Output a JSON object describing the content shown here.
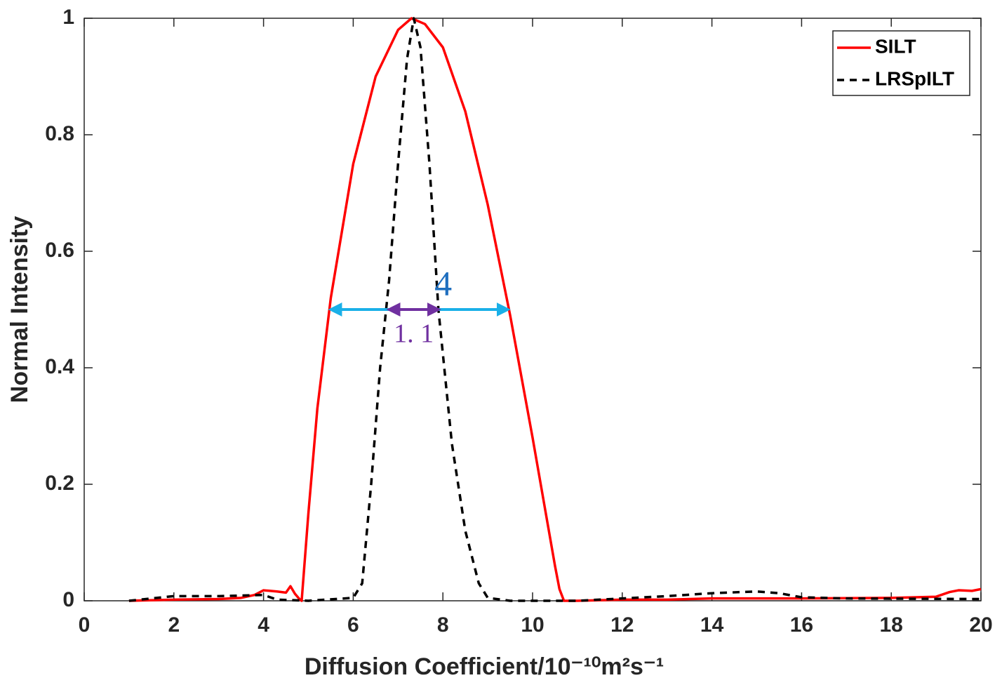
{
  "chart_data": {
    "type": "line",
    "xlabel": "Diffusion Coefficient/10⁻¹⁰m²s⁻¹",
    "ylabel": "Normal Intensity",
    "xlim": [
      0,
      20
    ],
    "ylim": [
      0,
      1
    ],
    "xticks": [
      0,
      2,
      4,
      6,
      8,
      10,
      12,
      14,
      16,
      18,
      20
    ],
    "yticks": [
      0,
      0.2,
      0.4,
      0.6,
      0.8,
      1
    ],
    "grid": false,
    "legend": "upper right",
    "series": [
      {
        "name": "SILT",
        "color": "#ff0000",
        "dash": "solid",
        "x": [
          1,
          2,
          3,
          3.5,
          3.8,
          4,
          4.3,
          4.5,
          4.6,
          4.7,
          4.8,
          4.85,
          4.9,
          5,
          5.2,
          5.5,
          6,
          6.5,
          7,
          7.3,
          7.6,
          8,
          8.5,
          9,
          9.5,
          10,
          10.5,
          10.6,
          10.7,
          11,
          12,
          13,
          14,
          16,
          18,
          19,
          19.3,
          19.5,
          19.8,
          20
        ],
        "values": [
          0,
          0.002,
          0.003,
          0.005,
          0.01,
          0.018,
          0.016,
          0.014,
          0.025,
          0.012,
          0.003,
          0,
          0.05,
          0.15,
          0.33,
          0.52,
          0.75,
          0.9,
          0.98,
          1,
          0.99,
          0.95,
          0.84,
          0.68,
          0.49,
          0.28,
          0.06,
          0.02,
          0,
          0,
          0.002,
          0.002,
          0.004,
          0.004,
          0.005,
          0.007,
          0.015,
          0.018,
          0.017,
          0.02
        ]
      },
      {
        "name": "LRSpILT",
        "color": "#000000",
        "dash": "dashed",
        "x": [
          1,
          2,
          3,
          4,
          4.3,
          5,
          6,
          6.2,
          6.4,
          6.6,
          6.8,
          7,
          7.2,
          7.35,
          7.5,
          7.7,
          7.9,
          8.2,
          8.5,
          8.8,
          9,
          9.5,
          11,
          13,
          14,
          15,
          15.5,
          16,
          17,
          20
        ],
        "values": [
          0,
          0.008,
          0.008,
          0.01,
          0.002,
          0,
          0.005,
          0.03,
          0.2,
          0.4,
          0.55,
          0.75,
          0.93,
          1,
          0.95,
          0.75,
          0.5,
          0.27,
          0.12,
          0.03,
          0.005,
          0,
          0,
          0.008,
          0.013,
          0.016,
          0.013,
          0.006,
          0.004,
          0.003
        ]
      }
    ],
    "annotations": [
      {
        "text": "4",
        "x": [
          5.5,
          9.45
        ],
        "y": 0.5,
        "color": "#1ab0e8",
        "text_color": "#1f6fbf"
      },
      {
        "text": "1. 1",
        "x": [
          6.8,
          7.9
        ],
        "y": 0.5,
        "color": "#7030a0",
        "text_color": "#7030a0"
      }
    ]
  }
}
